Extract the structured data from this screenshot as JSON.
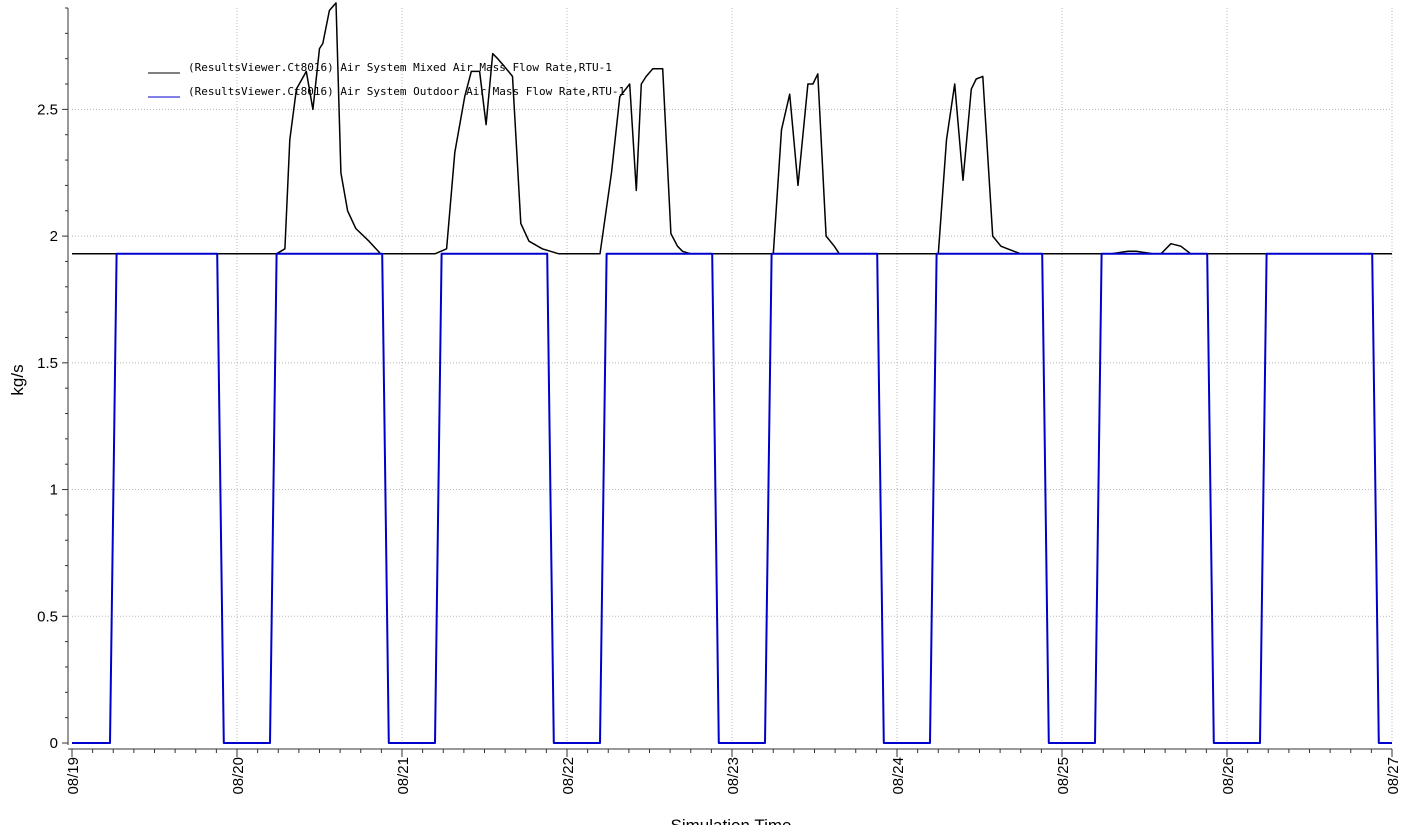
{
  "chart_data": {
    "type": "line",
    "title": "",
    "xlabel": "Simulation Time",
    "ylabel": "kg/s",
    "xlim": [
      0,
      8
    ],
    "ylim": [
      0,
      2.9
    ],
    "grid": true,
    "legend_position": "top-left",
    "x_tick_labels": [
      "08/19",
      "08/20",
      "08/21",
      "08/22",
      "08/23",
      "08/24",
      "08/25",
      "08/26",
      "08/27"
    ],
    "x_ticks": [
      0,
      1,
      2,
      3,
      4,
      5,
      6,
      7,
      8
    ],
    "y_ticks": [
      0,
      0.5,
      1,
      1.5,
      2,
      2.5
    ],
    "y_tick_labels": [
      "0",
      "0.5",
      "1",
      "1.5",
      "2",
      "2.5"
    ],
    "series": [
      {
        "name": "(ResultsViewer.Ct8016) Air System Mixed Air Mass Flow Rate,RTU-1",
        "color": "#000000",
        "x": [
          0,
          1.24,
          1.29,
          1.32,
          1.36,
          1.42,
          1.46,
          1.5,
          1.52,
          1.56,
          1.6,
          1.63,
          1.67,
          1.72,
          1.8,
          1.87,
          1.91,
          1.95,
          2.05,
          2.2,
          2.27,
          2.32,
          2.38,
          2.42,
          2.47,
          2.51,
          2.55,
          2.58,
          2.62,
          2.67,
          2.72,
          2.77,
          2.85,
          2.95,
          3.05,
          3.2,
          3.27,
          3.32,
          3.38,
          3.42,
          3.45,
          3.48,
          3.52,
          3.58,
          3.63,
          3.67,
          3.7,
          3.75,
          3.82,
          3.9,
          4.25,
          4.3,
          4.35,
          4.4,
          4.46,
          4.49,
          4.52,
          4.57,
          4.62,
          4.65,
          4.7,
          4.75,
          4.85,
          5.25,
          5.3,
          5.35,
          5.4,
          5.45,
          5.48,
          5.52,
          5.58,
          5.63,
          5.67,
          5.71,
          5.75,
          5.85,
          6.3,
          6.4,
          6.45,
          6.55,
          6.6,
          6.66,
          6.72,
          6.78,
          8
        ],
        "values": [
          1.93,
          1.93,
          1.95,
          2.38,
          2.58,
          2.65,
          2.5,
          2.74,
          2.76,
          2.89,
          2.92,
          2.25,
          2.1,
          2.03,
          1.98,
          1.93,
          1.93,
          1.93,
          1.93,
          1.93,
          1.95,
          2.33,
          2.55,
          2.65,
          2.65,
          2.44,
          2.72,
          2.7,
          2.67,
          2.63,
          2.05,
          1.98,
          1.95,
          1.93,
          1.93,
          1.93,
          2.25,
          2.55,
          2.6,
          2.18,
          2.6,
          2.63,
          2.66,
          2.66,
          2.01,
          1.96,
          1.94,
          1.93,
          1.93,
          1.93,
          1.93,
          2.42,
          2.56,
          2.2,
          2.6,
          2.6,
          2.64,
          2.0,
          1.96,
          1.93,
          1.93,
          1.93,
          1.93,
          1.93,
          2.38,
          2.6,
          2.22,
          2.58,
          2.62,
          2.63,
          2.0,
          1.96,
          1.95,
          1.94,
          1.93,
          1.93,
          1.93,
          1.94,
          1.94,
          1.93,
          1.93,
          1.97,
          1.96,
          1.93,
          1.93
        ]
      },
      {
        "name": "(ResultsViewer.Ct8016) Air System Outdoor Air Mass Flow Rate,RTU-1",
        "color": "#0000cc",
        "x": [
          0,
          0.23,
          0.27,
          0.88,
          0.92,
          1.2,
          1.24,
          1.88,
          1.92,
          2.2,
          2.24,
          2.88,
          2.92,
          3.2,
          3.24,
          3.88,
          3.92,
          4.2,
          4.24,
          4.88,
          4.92,
          5.2,
          5.24,
          5.88,
          5.92,
          6.2,
          6.24,
          6.88,
          6.92,
          7.2,
          7.24,
          7.88,
          7.92,
          8
        ],
        "values": [
          0,
          0,
          1.93,
          1.93,
          0,
          0,
          1.93,
          1.93,
          0,
          0,
          1.93,
          1.93,
          0,
          0,
          1.93,
          1.93,
          0,
          0,
          1.93,
          1.93,
          0,
          0,
          1.93,
          1.93,
          0,
          0,
          1.93,
          1.93,
          0,
          0,
          1.93,
          1.93,
          0,
          0
        ]
      }
    ]
  }
}
